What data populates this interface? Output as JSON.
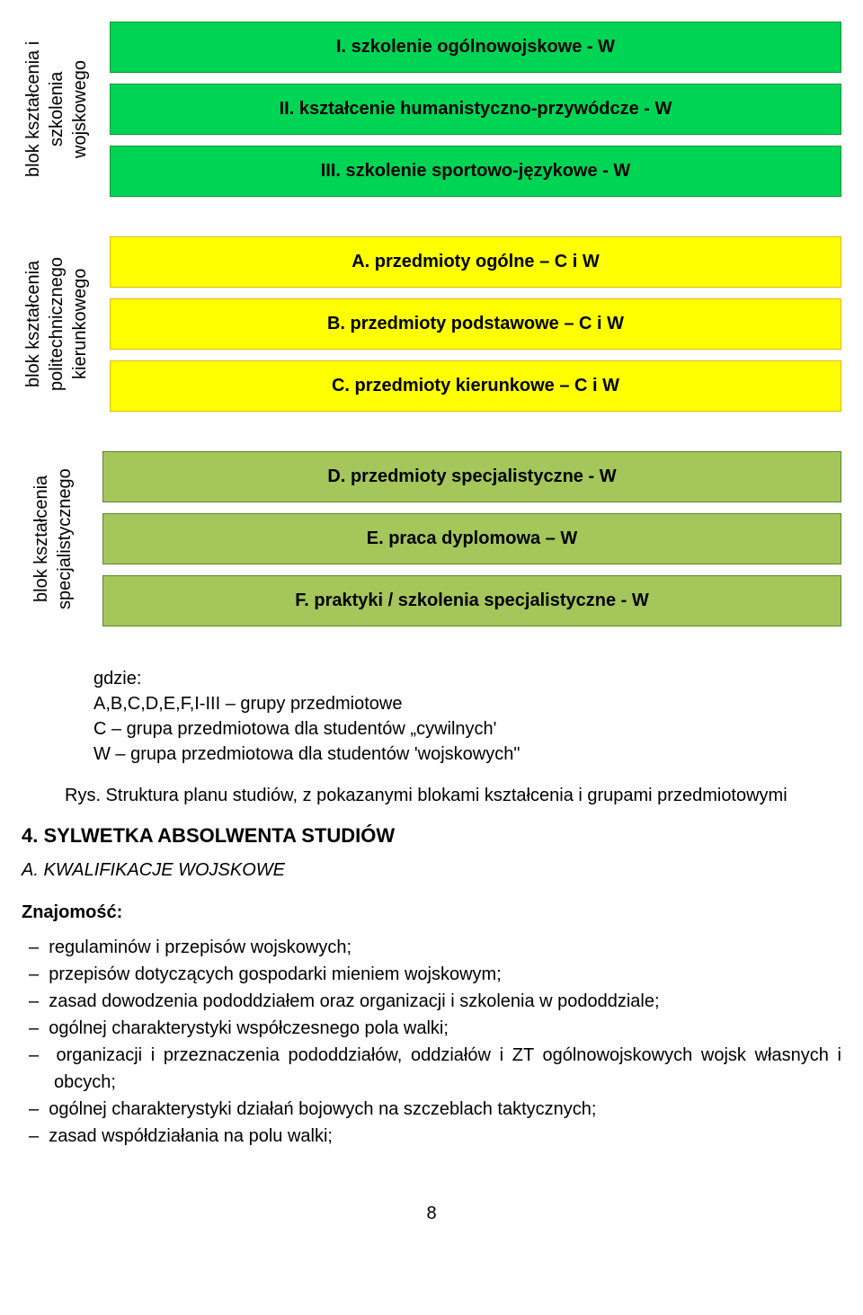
{
  "sections": [
    {
      "label": "blok kształcenia i\nszkolenia\nwojskowego",
      "box_bg": "#00d455",
      "box_border": "#009933",
      "items": [
        "I. szkolenie ogólnowojskowe - W",
        "II. kształcenie humanistyczno-przywódcze - W",
        "III. szkolenie sportowo-językowe - W"
      ]
    },
    {
      "label": "blok kształcenia\npolitechnicznego\nkierunkowego",
      "box_bg": "#ffff00",
      "box_border": "#e6b800",
      "items": [
        "A. przedmioty ogólne – C i W",
        "B. przedmioty podstawowe – C i W",
        "C. przedmioty kierunkowe – C i W"
      ]
    },
    {
      "label": "blok kształcenia\nspecjalistycznego",
      "box_bg": "#a4c65b",
      "box_border": "#5a8a2d",
      "items": [
        "D. przedmioty specjalistyczne - W",
        "E. praca dyplomowa – W",
        "F. praktyki / szkolenia specjalistyczne - W"
      ]
    }
  ],
  "legend": {
    "intro": "gdzie:",
    "lines": [
      "A,B,C,D,E,F,I-III – grupy przedmiotowe",
      "C – grupa przedmiotowa dla studentów „cywilnych'",
      "W – grupa przedmiotowa dla studentów 'wojskowych\""
    ]
  },
  "caption": "Rys. Struktura planu studiów, z pokazanymi blokami kształcenia i grupami przedmiotowymi",
  "heading4": "4. SYLWETKA ABSOLWENTA STUDIÓW",
  "sub_a": "A. KWALIFIKACJE WOJSKOWE",
  "znaj_title": "Znajomość:",
  "bullets": [
    "regulaminów i przepisów wojskowych;",
    "przepisów dotyczących gospodarki mieniem wojskowym;",
    "zasad dowodzenia pododdziałem oraz organizacji i szkolenia w pododdziale;",
    "ogólnej charakterystyki współczesnego pola walki;",
    "organizacji i przeznaczenia pododdziałów, oddziałów i ZT ogólnowojskowych wojsk własnych i obcych;",
    "ogólnej charakterystyki działań bojowych na szczeblach taktycznych;",
    "zasad współdziałania na polu walki;"
  ],
  "page_number": "8"
}
